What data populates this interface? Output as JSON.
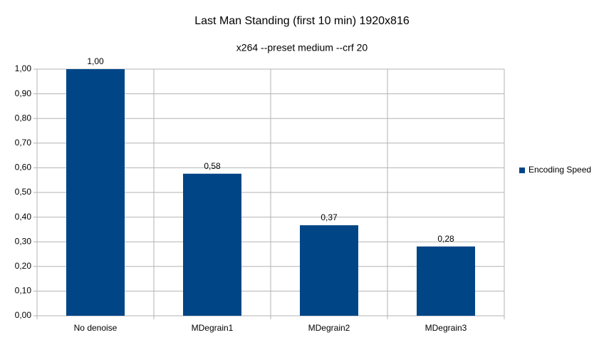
{
  "chart_data": {
    "type": "bar",
    "title": "Last Man Standing (first 10 min) 1920x816",
    "subtitle": "x264 --preset medium --crf 20",
    "categories": [
      "No denoise",
      "MDegrain1",
      "MDegrain2",
      "MDegrain3"
    ],
    "series": [
      {
        "name": "Encoding Speed",
        "color": "#004586",
        "values": [
          1.0,
          0.576,
          0.367,
          0.281
        ],
        "value_labels": [
          "1,00",
          "0,58",
          "0,37",
          "0,28"
        ]
      }
    ],
    "ylim": [
      0,
      1
    ],
    "yticks": [
      {
        "value": 0,
        "label": "0,00"
      },
      {
        "value": 0.1,
        "label": "0,10"
      },
      {
        "value": 0.2,
        "label": "0,20"
      },
      {
        "value": 0.3,
        "label": "0,30"
      },
      {
        "value": 0.4,
        "label": "0,40"
      },
      {
        "value": 0.5,
        "label": "0,50"
      },
      {
        "value": 0.6,
        "label": "0,60"
      },
      {
        "value": 0.7,
        "label": "0,70"
      },
      {
        "value": 0.8,
        "label": "0,80"
      },
      {
        "value": 0.9,
        "label": "0,90"
      },
      {
        "value": 1,
        "label": "1,00"
      }
    ],
    "grid": true,
    "legend": "right"
  }
}
